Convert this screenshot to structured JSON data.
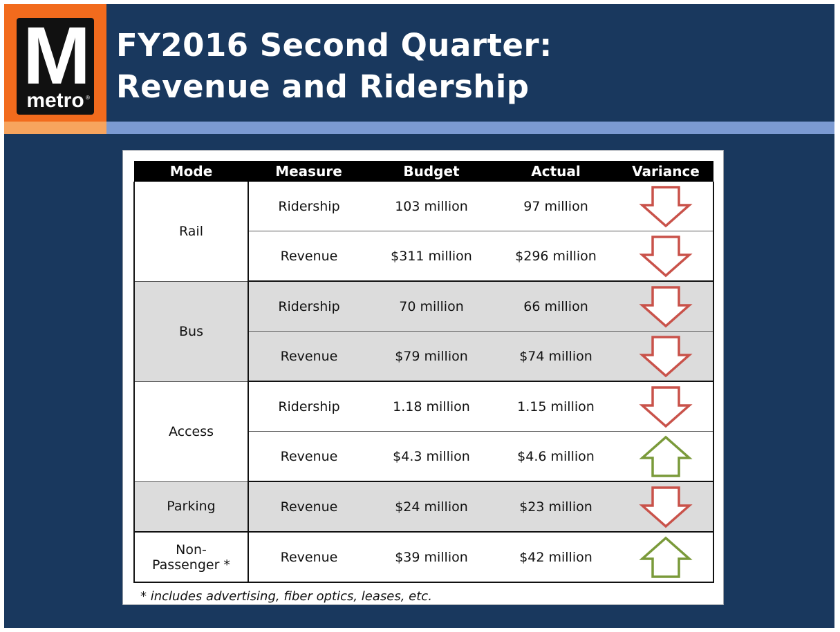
{
  "logo": {
    "letter": "M",
    "word": "metro",
    "reg_mark": "®"
  },
  "title": {
    "line1": "FY2016 Second Quarter:",
    "line2": "Revenue and Ridership"
  },
  "colors": {
    "background": "#19385e",
    "logo_orange": "#f26b1d",
    "down_arrow": "#c9524a",
    "up_arrow": "#7a9a3a",
    "shaded_row": "#dcdcdc"
  },
  "table": {
    "headers": [
      "Mode",
      "Measure",
      "Budget",
      "Actual",
      "Variance"
    ],
    "groups": [
      {
        "mode": "Rail",
        "mode_line2": "",
        "shaded": false,
        "rows": [
          {
            "measure": "Ridership",
            "budget": "103 million",
            "actual": "97 million",
            "variance": "down"
          },
          {
            "measure": "Revenue",
            "budget": "$311 million",
            "actual": "$296 million",
            "variance": "down"
          }
        ]
      },
      {
        "mode": "Bus",
        "mode_line2": "",
        "shaded": true,
        "rows": [
          {
            "measure": "Ridership",
            "budget": "70 million",
            "actual": "66 million",
            "variance": "down"
          },
          {
            "measure": "Revenue",
            "budget": "$79 million",
            "actual": "$74 million",
            "variance": "down"
          }
        ]
      },
      {
        "mode": "Access",
        "mode_line2": "",
        "shaded": false,
        "rows": [
          {
            "measure": "Ridership",
            "budget": "1.18 million",
            "actual": "1.15 million",
            "variance": "down"
          },
          {
            "measure": "Revenue",
            "budget": "$4.3 million",
            "actual": "$4.6 million",
            "variance": "up"
          }
        ]
      },
      {
        "mode": "Parking",
        "mode_line2": "",
        "shaded": true,
        "rows": [
          {
            "measure": "Revenue",
            "budget": "$24 million",
            "actual": "$23 million",
            "variance": "down"
          }
        ]
      },
      {
        "mode": "Non-",
        "mode_line2": "Passenger *",
        "shaded": false,
        "rows": [
          {
            "measure": "Revenue",
            "budget": "$39 million",
            "actual": "$42 million",
            "variance": "up"
          }
        ]
      }
    ]
  },
  "footnote": "* includes advertising, fiber optics, leases, etc."
}
